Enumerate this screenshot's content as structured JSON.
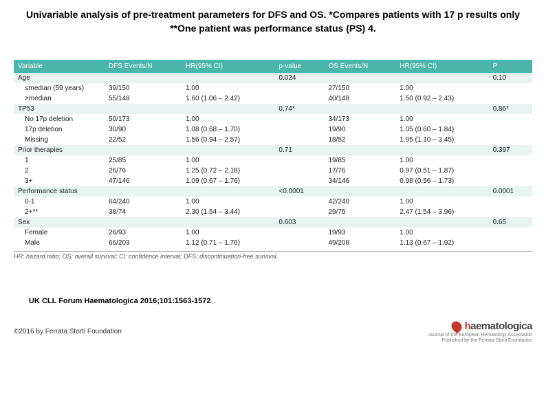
{
  "title": "Univariable analysis of pre-treatment parameters for DFS and OS. *Compares patients with 17 p results only **One patient was performance status (PS) 4.",
  "columns": [
    "Variable",
    "DFS Events/N",
    "HR(95% CI)",
    "p-value",
    "OS Events/N",
    "HR(95% CI)",
    "P"
  ],
  "groups": [
    {
      "label": "Age",
      "p1": "0.024",
      "p2": "0.10",
      "rows": [
        {
          "v": "≤median (59 years)",
          "dfs": "39/150",
          "hr1": "1.00",
          "os": "27/150",
          "hr2": "1.00"
        },
        {
          "v": ">median",
          "dfs": "55/148",
          "hr1": "1.60 (1.06 – 2.42)",
          "os": "40/148",
          "hr2": "1.50 (0.92 – 2.43)"
        }
      ]
    },
    {
      "label": "TP53",
      "p1": "0.74*",
      "p2": "0.86*",
      "rows": [
        {
          "v": "No 17p deletion",
          "dfs": "50/173",
          "hr1": "1.00",
          "os": "34/173",
          "hr2": "1.00"
        },
        {
          "v": "17p deletion",
          "dfs": "30/90",
          "hr1": "1.08 (0.68 – 1.70)",
          "os": "19/90",
          "hr2": "1.05 (0.60 – 1.84)"
        },
        {
          "v": "Missing",
          "dfs": "22/52",
          "hr1": "1.56 (0.94 – 2.57)",
          "os": "18/52",
          "hr2": "1.95 (1.10 – 3.45)"
        }
      ]
    },
    {
      "label": "Prior therapies",
      "p1": "0.71",
      "p2": "0.397",
      "rows": [
        {
          "v": "1",
          "dfs": "25/85",
          "hr1": "1.00",
          "os": "19/85",
          "hr2": "1.00"
        },
        {
          "v": "2",
          "dfs": "26/76",
          "hr1": "1.25 (0.72 – 2.18)",
          "os": "17/76",
          "hr2": "0.97 (0.51 – 1.87)"
        },
        {
          "v": "3+",
          "dfs": "47/146",
          "hr1": "1.09 (0.67 – 1.76)",
          "os": "34/146",
          "hr2": "0.98 (0.56 – 1.73)"
        }
      ]
    },
    {
      "label": "Performance status",
      "p1": "<0.0001",
      "p2": "0.0001",
      "rows": [
        {
          "v": "0-1",
          "dfs": "64/240",
          "hr1": "1.00",
          "os": "42/240",
          "hr2": "1.00"
        },
        {
          "v": "2+**",
          "dfs": "38/74",
          "hr1": "2.30 (1.54 – 3.44)",
          "os": "29/75",
          "hr2": "2.47 (1.54 – 3.96)"
        }
      ]
    },
    {
      "label": "Sex",
      "p1": "0.603",
      "p2": "0.65",
      "rows": [
        {
          "v": "Female",
          "dfs": "26/93",
          "hr1": "1.00",
          "os": "19/93",
          "hr2": "1.00"
        },
        {
          "v": "Male",
          "dfs": "66/203",
          "hr1": "1.12 (0.71 – 1.76)",
          "os": "49/208",
          "hr2": "1.13 (0.67 – 1.92)"
        }
      ]
    }
  ],
  "footnote": "HR: hazard ratio; OS: overall survival; CI: confidence interval; DFS: discontinuation-free survival.",
  "citation": "UK CLL Forum Haematologica 2016;101:1563-1572",
  "copyright": "©2016 by Ferrata Storti Foundation",
  "logo": {
    "pre": "h",
    "main": "aematologica",
    "sub1": "Journal of the European Hematology Association",
    "sub2": "Published by the Ferrata Storti Foundation"
  }
}
